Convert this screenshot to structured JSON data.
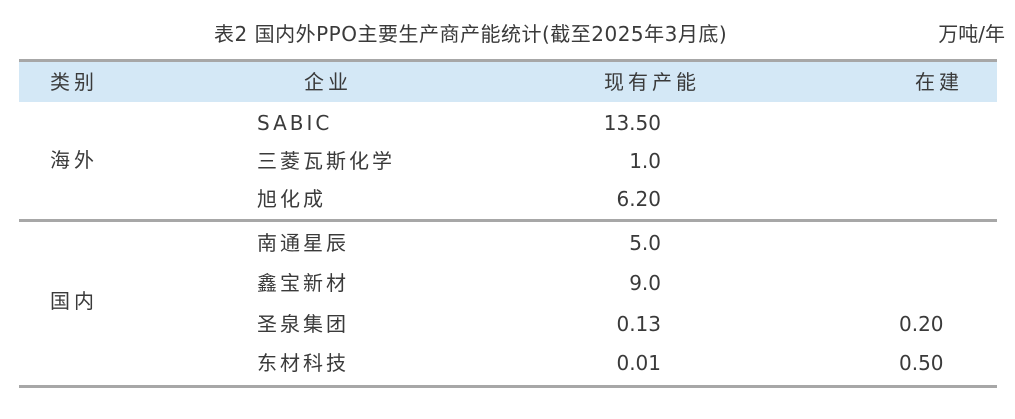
{
  "caption": {
    "title": "表2  国内外PPO主要生产商产能统计(截至2025年3月底)",
    "unit": "万吨/年"
  },
  "table": {
    "headers": {
      "category": "类别",
      "company": "企业",
      "capacity": "现有产能",
      "under_construction": "在建"
    },
    "groups": [
      {
        "name": "海外",
        "rows": [
          {
            "company": "SABIC",
            "capacity": "13.50",
            "under_construction": ""
          },
          {
            "company": "三菱瓦斯化学",
            "capacity": "1.0",
            "under_construction": ""
          },
          {
            "company": "旭化成",
            "capacity": "6.20",
            "under_construction": ""
          }
        ]
      },
      {
        "name": "国内",
        "rows": [
          {
            "company": "南通星辰",
            "capacity": "5.0",
            "under_construction": ""
          },
          {
            "company": "鑫宝新材",
            "capacity": "9.0",
            "under_construction": ""
          },
          {
            "company": "圣泉集团",
            "capacity": "0.13",
            "under_construction": "0.20"
          },
          {
            "company": "东材科技",
            "capacity": "0.01",
            "under_construction": "0.50"
          }
        ]
      }
    ]
  }
}
